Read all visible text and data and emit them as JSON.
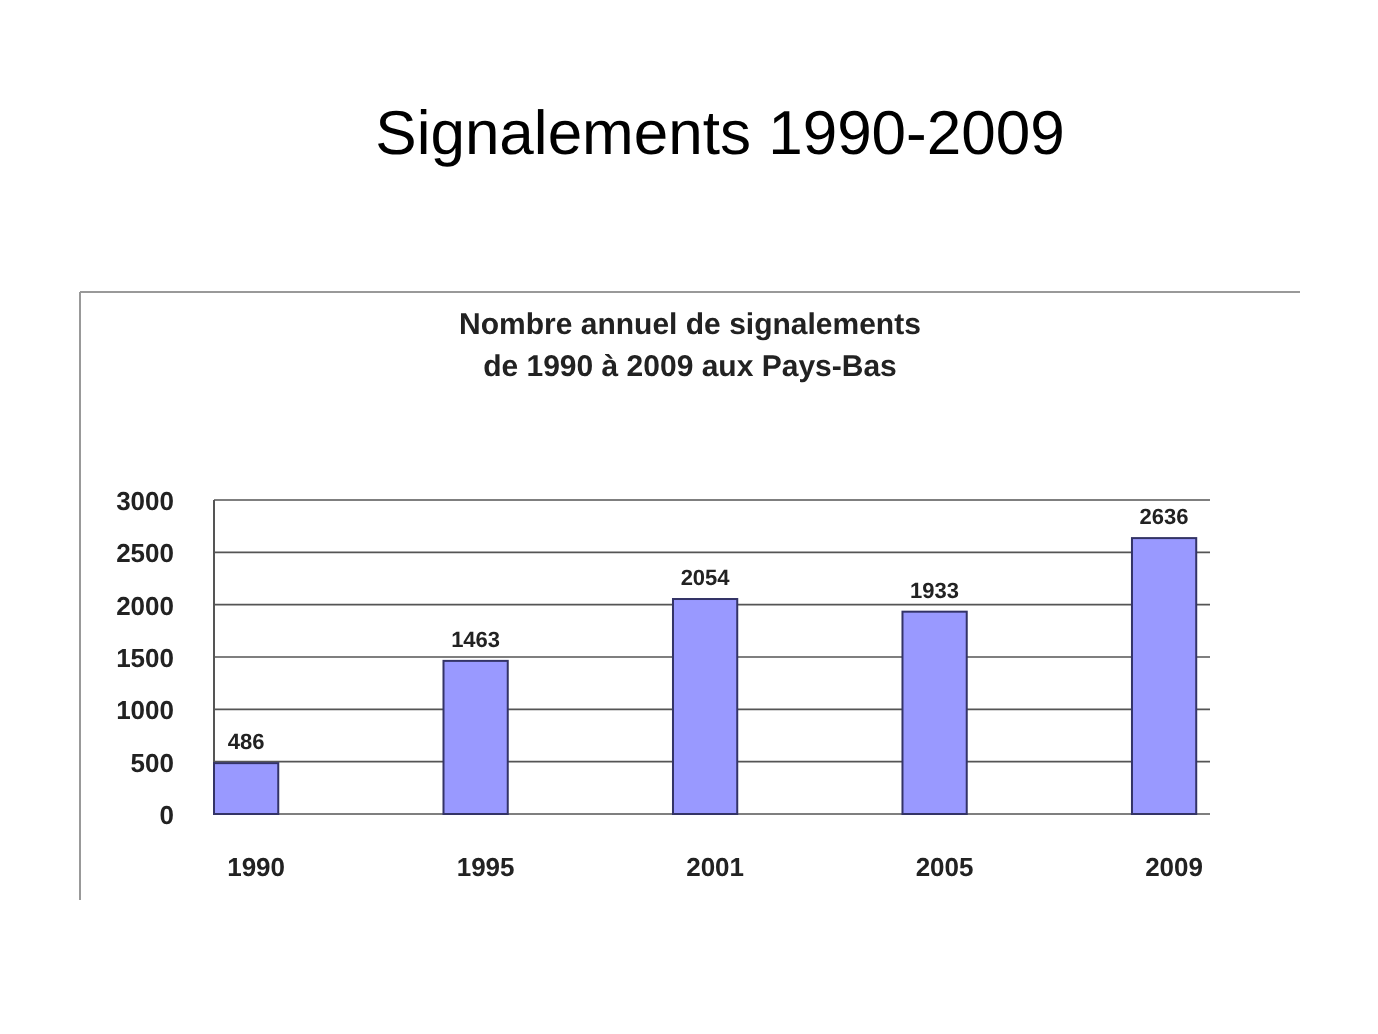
{
  "chart_data": {
    "type": "bar",
    "title": "Signalements 1990-2009",
    "subtitle": "Nombre annuel de signalements de 1990 à 2009 aux Pays-Bas",
    "categories": [
      "1990",
      "1995",
      "2001",
      "2005",
      "2009"
    ],
    "values": [
      486,
      1463,
      2054,
      1933,
      2636
    ],
    "color": "#9999ff",
    "ylim": [
      0,
      3000
    ],
    "yticks": [
      0,
      500,
      1000,
      1500,
      2000,
      2500,
      3000
    ],
    "grid": "y",
    "data_labels": true
  }
}
